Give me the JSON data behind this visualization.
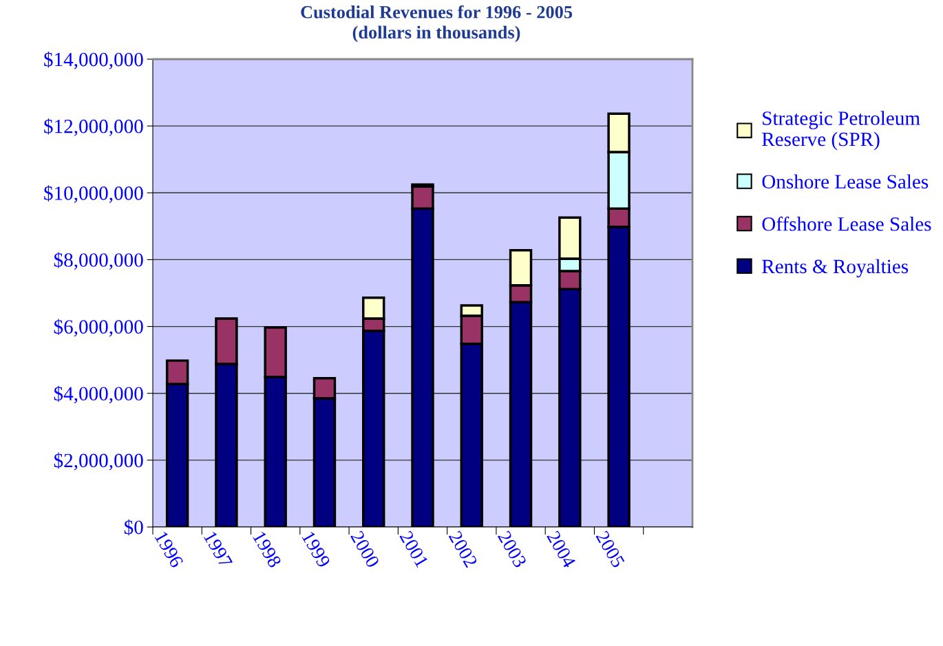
{
  "chart_data": {
    "type": "bar",
    "stacked": true,
    "title": "Custodial Revenues for 1996 - 2005\n(dollars in thousands)",
    "categories": [
      "1996",
      "1997",
      "1998",
      "1999",
      "2000",
      "2001",
      "2002",
      "2003",
      "2004",
      "2005",
      null
    ],
    "series": [
      {
        "name": "Rents & Royalties",
        "color": "#000080",
        "values": [
          4280000,
          4880000,
          4490000,
          3850000,
          5870000,
          9530000,
          5480000,
          6730000,
          7120000,
          8980000,
          null
        ]
      },
      {
        "name": "Offshore Lease Sales",
        "color": "#993366",
        "values": [
          700000,
          1360000,
          1480000,
          600000,
          370000,
          660000,
          840000,
          500000,
          540000,
          550000,
          null
        ]
      },
      {
        "name": "Onshore Lease Sales",
        "color": "#ccffff",
        "values": [
          0,
          0,
          0,
          0,
          0,
          0,
          0,
          0,
          370000,
          1690000,
          null
        ]
      },
      {
        "name": "Strategic Petroleum Reserve (SPR)",
        "color": "#ffffcc",
        "values": [
          0,
          0,
          0,
          0,
          620000,
          60000,
          310000,
          1050000,
          1230000,
          1150000,
          null
        ]
      }
    ],
    "ylim": [
      0,
      14000000
    ],
    "yticks": [
      {
        "value": 0,
        "label": "$0"
      },
      {
        "value": 2000000,
        "label": "$2,000,000"
      },
      {
        "value": 4000000,
        "label": "$4,000,000"
      },
      {
        "value": 6000000,
        "label": "$6,000,000"
      },
      {
        "value": 8000000,
        "label": "$8,000,000"
      },
      {
        "value": 10000000,
        "label": "$10,000,000"
      },
      {
        "value": 12000000,
        "label": "$12,000,000"
      },
      {
        "value": 14000000,
        "label": "$14,000,000"
      }
    ],
    "grid": "y",
    "legend": "right"
  }
}
